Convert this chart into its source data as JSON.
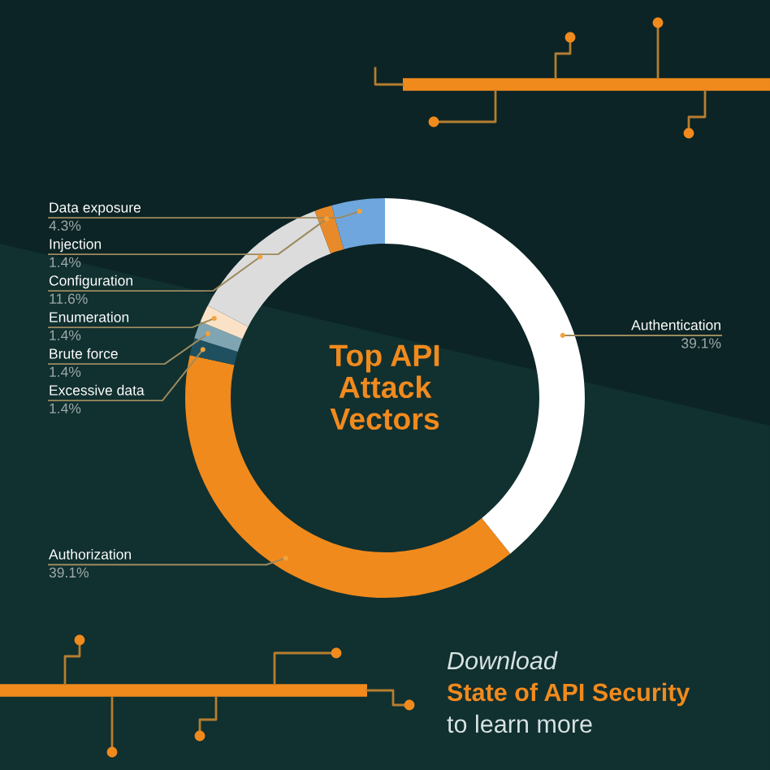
{
  "chart_data": {
    "type": "donut",
    "title": "Top API Attack Vectors",
    "categories": [
      "Authentication",
      "Authorization",
      "Excessive data",
      "Brute force",
      "Enumeration",
      "Configuration",
      "Injection",
      "Data exposure"
    ],
    "values": [
      39.1,
      39.1,
      1.4,
      1.4,
      1.4,
      11.6,
      1.4,
      4.3
    ],
    "colors": [
      "#ffffff",
      "#f18a1d",
      "#1e5060",
      "#7fa5b3",
      "#fbe2c6",
      "#dcdcdc",
      "#e88a2a",
      "#6fa6dd"
    ],
    "value_labels": [
      "39.1%",
      "39.1%",
      "1.4%",
      "1.4%",
      "1.4%",
      "11.6%",
      "1.4%",
      "4.3%"
    ],
    "annotations": [
      "Download",
      "State of API Security",
      "to learn more"
    ]
  }
}
